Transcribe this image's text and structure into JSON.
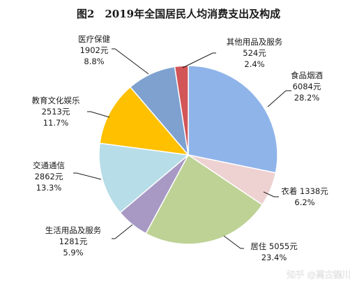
{
  "chart_data": {
    "type": "pie",
    "title": "图2　2019年全国居民人均消费支出及构成",
    "slices": [
      {
        "name": "食品烟酒",
        "value": 6084,
        "value_text": "6084元",
        "percent": 28.2,
        "percent_text": "28.2%",
        "color": "#8fb4ea"
      },
      {
        "name": "衣着",
        "value": 1338,
        "value_text": "1338元",
        "percent": 6.2,
        "percent_text": "6.2%",
        "color": "#eed1d1"
      },
      {
        "name": "居住",
        "value": 5055,
        "value_text": "5055元",
        "percent": 23.4,
        "percent_text": "23.4%",
        "color": "#bdd294"
      },
      {
        "name": "生活用品及服务",
        "value": 1281,
        "value_text": "1281元",
        "percent": 5.9,
        "percent_text": "5.9%",
        "color": "#a799c4"
      },
      {
        "name": "交通通信",
        "value": 2862,
        "value_text": "2862元",
        "percent": 13.3,
        "percent_text": "13.3%",
        "color": "#b7dde8"
      },
      {
        "name": "教育文化娱乐",
        "value": 2513,
        "value_text": "2513元",
        "percent": 11.7,
        "percent_text": "11.7%",
        "color": "#ffc000"
      },
      {
        "name": "医疗保健",
        "value": 1902,
        "value_text": "1902元",
        "percent": 8.8,
        "percent_text": "8.8%",
        "color": "#7ea1cf"
      },
      {
        "name": "其他用品及服务",
        "value": 524,
        "value_text": "524元",
        "percent": 2.4,
        "percent_text": "2.4%",
        "color": "#d25558"
      }
    ]
  },
  "watermark": {
    "text": "知乎 @萬古龍川"
  }
}
